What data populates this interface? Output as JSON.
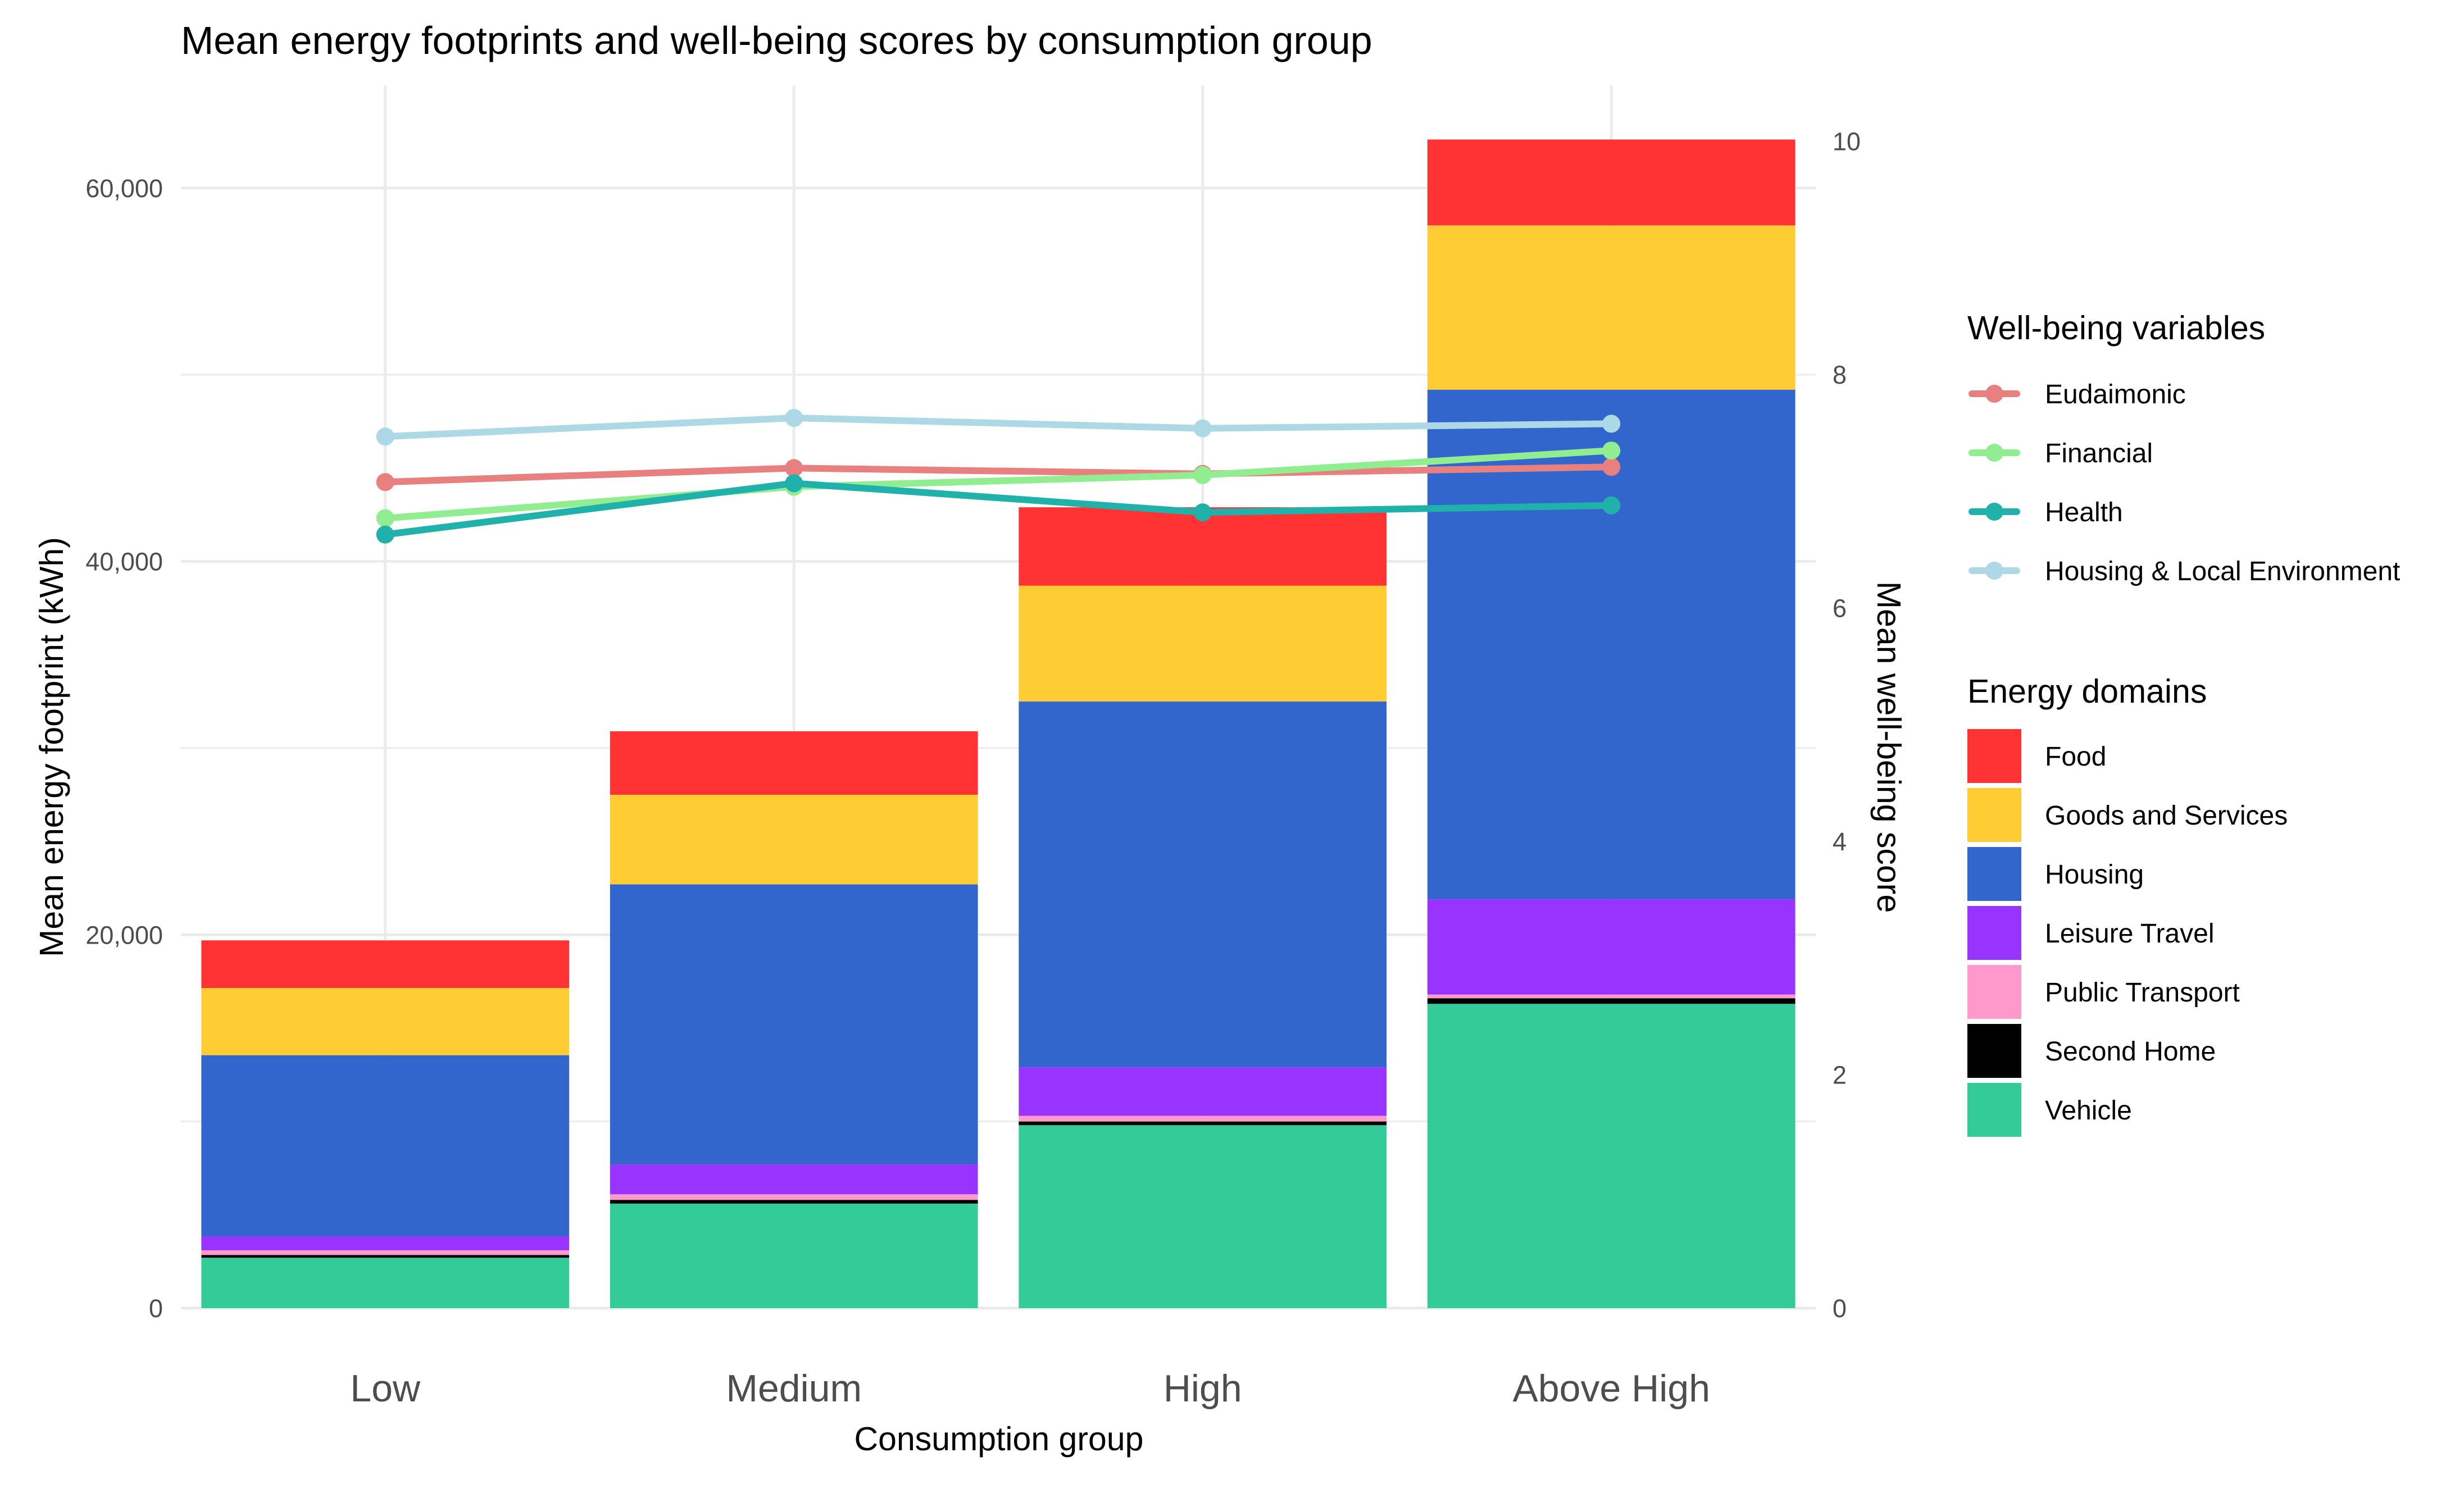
{
  "chart_data": {
    "type": "bar",
    "title": "Mean energy footprints and well-being scores by consumption group",
    "xlabel": "Consumption group",
    "ylabel": "Mean energy footprint (kWh)",
    "y2label": "Mean well-being score",
    "categories": [
      "Low",
      "Medium",
      "High",
      "Above High"
    ],
    "ylim": [
      0,
      65500
    ],
    "y2lim": [
      0,
      10.48
    ],
    "yticks": [
      0,
      20000,
      40000,
      60000
    ],
    "ytick_labels": [
      "0",
      "20,000",
      "40,000",
      "60,000"
    ],
    "y2ticks": [
      0,
      2,
      4,
      6,
      8,
      10
    ],
    "y2tick_labels": [
      "0",
      "2",
      "4",
      "6",
      "8",
      "10"
    ],
    "grid": true,
    "stacked_series": [
      {
        "name": "Vehicle",
        "color": "#33CC99",
        "values": [
          2700,
          5600,
          9800,
          16300
        ]
      },
      {
        "name": "Second Home",
        "color": "#000000",
        "values": [
          150,
          200,
          200,
          300
        ]
      },
      {
        "name": "Public Transport",
        "color": "#FF99CC",
        "values": [
          250,
          300,
          300,
          200
        ]
      },
      {
        "name": "Leisure Travel",
        "color": "#9933FF",
        "values": [
          750,
          1600,
          2600,
          5100
        ]
      },
      {
        "name": "Housing",
        "color": "#3366CC",
        "values": [
          9700,
          15000,
          19600,
          27300
        ]
      },
      {
        "name": "Goods and Services",
        "color": "#FFCC33",
        "values": [
          3600,
          4800,
          6200,
          8800
        ]
      },
      {
        "name": "Food",
        "color": "#FF3333",
        "values": [
          2550,
          3400,
          4200,
          4600
        ]
      }
    ],
    "line_series": [
      {
        "name": "Eudaimonic",
        "color": "#E88080",
        "values": [
          7.08,
          7.2,
          7.15,
          7.21
        ]
      },
      {
        "name": "Financial",
        "color": "#90EE90",
        "values": [
          6.77,
          7.04,
          7.14,
          7.35
        ]
      },
      {
        "name": "Health",
        "color": "#20B2AA",
        "values": [
          6.63,
          7.07,
          6.82,
          6.88
        ]
      },
      {
        "name": "Housing & Local Environment",
        "color": "#ADD8E6",
        "values": [
          7.47,
          7.63,
          7.54,
          7.58
        ]
      }
    ],
    "legend_lines_title": "Well-being variables",
    "legend_bars_title": "Energy domains",
    "legend_position": "right",
    "legend_bar_order": [
      "Food",
      "Goods and Services",
      "Housing",
      "Leisure Travel",
      "Public Transport",
      "Second Home",
      "Vehicle"
    ]
  }
}
